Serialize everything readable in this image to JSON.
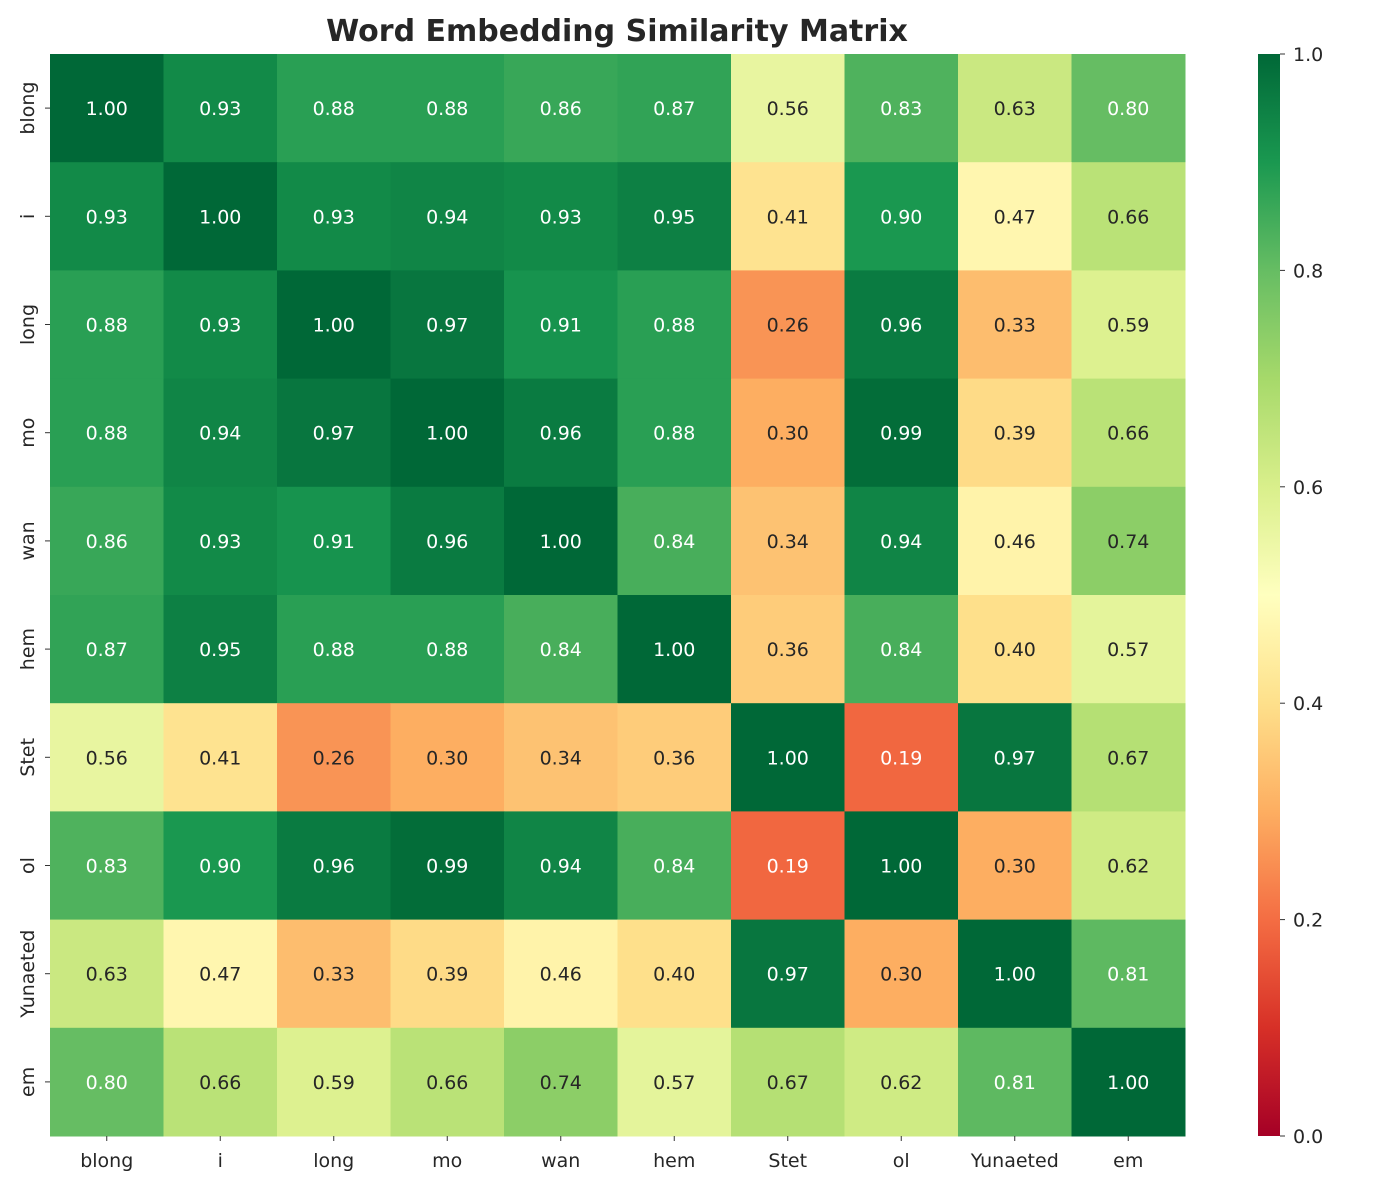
{
  "chart_data": {
    "type": "heatmap",
    "title": "Word Embedding Similarity Matrix",
    "colormap": "RdYlGn",
    "vmin": 0.0,
    "vmax": 1.0,
    "colorbar_ticks": [
      "0.0",
      "0.2",
      "0.4",
      "0.6",
      "0.8",
      "1.0"
    ],
    "labels": [
      "blong",
      "i",
      "long",
      "mo",
      "wan",
      "hem",
      "Stet",
      "ol",
      "Yunaeted",
      "em"
    ],
    "values": [
      [
        1.0,
        0.93,
        0.88,
        0.88,
        0.86,
        0.87,
        0.56,
        0.83,
        0.63,
        0.8
      ],
      [
        0.93,
        1.0,
        0.93,
        0.94,
        0.93,
        0.95,
        0.41,
        0.9,
        0.47,
        0.66
      ],
      [
        0.88,
        0.93,
        1.0,
        0.97,
        0.91,
        0.88,
        0.26,
        0.96,
        0.33,
        0.59
      ],
      [
        0.88,
        0.94,
        0.97,
        1.0,
        0.96,
        0.88,
        0.3,
        0.99,
        0.39,
        0.66
      ],
      [
        0.86,
        0.93,
        0.91,
        0.96,
        1.0,
        0.84,
        0.34,
        0.94,
        0.46,
        0.74
      ],
      [
        0.87,
        0.95,
        0.88,
        0.88,
        0.84,
        1.0,
        0.36,
        0.84,
        0.4,
        0.57
      ],
      [
        0.56,
        0.41,
        0.26,
        0.3,
        0.34,
        0.36,
        1.0,
        0.19,
        0.97,
        0.67
      ],
      [
        0.83,
        0.9,
        0.96,
        0.99,
        0.94,
        0.84,
        0.19,
        1.0,
        0.3,
        0.62
      ],
      [
        0.63,
        0.47,
        0.33,
        0.39,
        0.46,
        0.4,
        0.97,
        0.3,
        1.0,
        0.81
      ],
      [
        0.8,
        0.66,
        0.59,
        0.66,
        0.74,
        0.57,
        0.67,
        0.62,
        0.81,
        1.0
      ]
    ]
  }
}
